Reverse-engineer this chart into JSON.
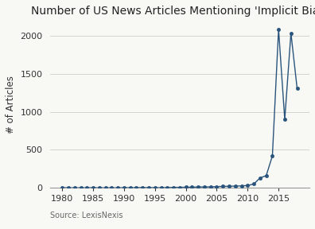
{
  "title": "Number of US News Articles Mentioning 'Implicit Bias'",
  "ylabel": "# of Articles",
  "source": "Source: LexisNexis",
  "years": [
    1980,
    1981,
    1982,
    1983,
    1984,
    1985,
    1986,
    1987,
    1988,
    1989,
    1990,
    1991,
    1992,
    1993,
    1994,
    1995,
    1996,
    1997,
    1998,
    1999,
    2000,
    2001,
    2002,
    2003,
    2004,
    2005,
    2006,
    2007,
    2008,
    2009,
    2010,
    2011,
    2012,
    2013,
    2014,
    2015,
    2016,
    2017,
    2018
  ],
  "values": [
    2,
    0,
    0,
    0,
    0,
    2,
    0,
    0,
    0,
    0,
    2,
    1,
    2,
    3,
    2,
    2,
    1,
    3,
    5,
    6,
    7,
    8,
    10,
    11,
    12,
    15,
    18,
    20,
    22,
    25,
    30,
    50,
    130,
    160,
    420,
    2090,
    900,
    2040,
    1310
  ],
  "line_color": "#2a547c",
  "marker_color": "#2a547c",
  "background_color": "#f8f8f4",
  "ylim": [
    0,
    2200
  ],
  "yticks": [
    0,
    500,
    1000,
    1500,
    2000
  ],
  "xticks": [
    1980,
    1985,
    1990,
    1995,
    2000,
    2005,
    2010,
    2015
  ],
  "xlim": [
    1978,
    2020
  ],
  "title_fontsize": 10,
  "axis_label_fontsize": 8.5,
  "tick_fontsize": 8,
  "source_fontsize": 7
}
